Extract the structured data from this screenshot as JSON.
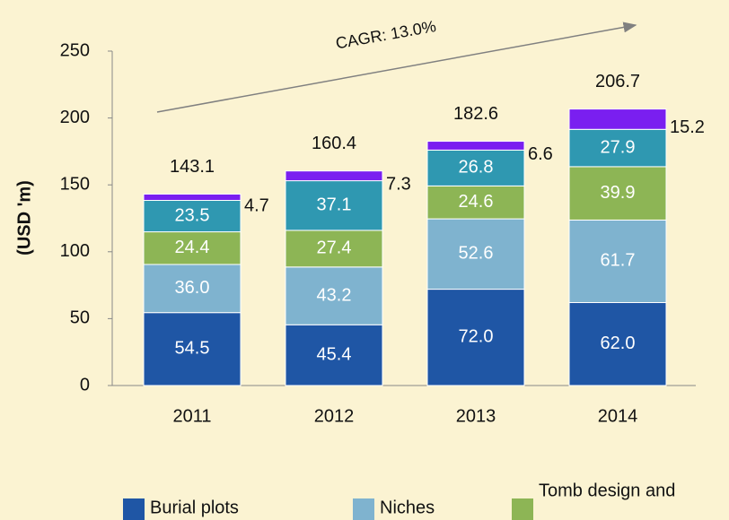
{
  "chart_data": {
    "type": "stacked_bar",
    "annotation": "CAGR: 13.0%",
    "y_label": "(USD 'm)",
    "categories": [
      "2011",
      "2012",
      "2013",
      "2014"
    ],
    "series": [
      {
        "name": "Burial plots",
        "color": "#1f56a5",
        "values": [
          54.5,
          45.4,
          72.0,
          62.0
        ],
        "value_labels": [
          "54.5",
          "45.4",
          "72.0",
          "62.0"
        ]
      },
      {
        "name": "Niches",
        "color": "#7fb3cf",
        "values": [
          36.0,
          43.2,
          52.6,
          61.7
        ],
        "value_labels": [
          "36.0",
          "43.2",
          "52.6",
          "61.7"
        ]
      },
      {
        "name": "Tomb design and",
        "color": "#8db555",
        "values": [
          24.4,
          27.4,
          24.6,
          39.9
        ],
        "value_labels": [
          "24.4",
          "27.4",
          "24.6",
          "39.9"
        ]
      },
      {
        "color": "#2f98b1",
        "values": [
          23.5,
          37.1,
          26.8,
          27.9
        ],
        "value_labels": [
          "23.5",
          "37.1",
          "26.8",
          "27.9"
        ]
      },
      {
        "color": "#7a1ff0",
        "values": [
          4.7,
          7.3,
          6.6,
          15.2
        ],
        "value_labels": [
          "4.7",
          "7.3",
          "6.6",
          "15.2"
        ]
      }
    ],
    "totals": [
      143.1,
      160.4,
      182.6,
      206.7
    ],
    "ylim": [
      0,
      250
    ],
    "yticks": [
      0,
      50,
      100,
      150,
      200,
      250
    ],
    "grid": false
  }
}
